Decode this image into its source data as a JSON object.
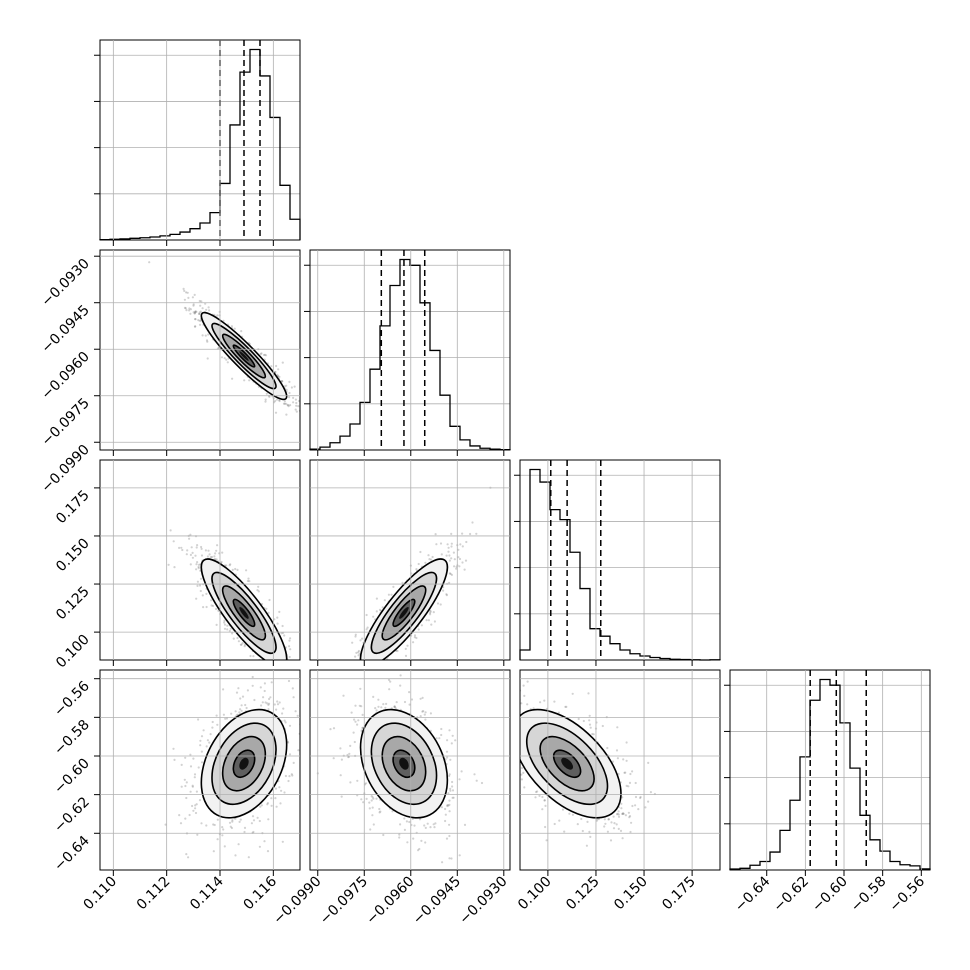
{
  "chart_data": {
    "type": "scatter",
    "kind": "corner-plot",
    "ndim": 4,
    "grid": true,
    "colors": {
      "line": "#000000",
      "grid": "#b0b0b0",
      "points": "#7f7f7f"
    },
    "params": [
      {
        "range": [
          0.1095,
          0.117
        ],
        "ticks": [
          0.11,
          0.112,
          0.114,
          0.116
        ],
        "tick_labels": [
          "0.110",
          "0.112",
          "0.114",
          "0.116"
        ],
        "quantiles": [
          0.114,
          0.1149,
          0.1155
        ],
        "median": 0.1149,
        "sigma": 0.0008
      },
      {
        "range": [
          -0.09925,
          -0.0928
        ],
        "ticks": [
          -0.099,
          -0.0975,
          -0.096,
          -0.0945,
          -0.093
        ],
        "tick_labels": [
          "−0.0990",
          "−0.0975",
          "−0.0960",
          "−0.0945",
          "−0.0930"
        ],
        "quantiles": [
          -0.09695,
          -0.09622,
          -0.09555
        ],
        "median": -0.09622,
        "sigma": 0.0007
      },
      {
        "range": [
          0.0855,
          0.1895
        ],
        "ticks": [
          0.1,
          0.125,
          0.15,
          0.175
        ],
        "tick_labels": [
          "0.100",
          "0.125",
          "0.150",
          "0.175"
        ],
        "quantiles": [
          0.1015,
          0.11,
          0.1275
        ],
        "median": 0.11,
        "sigma": 0.014
      },
      {
        "range": [
          -0.659,
          -0.5555
        ],
        "ticks": [
          -0.64,
          -0.62,
          -0.6,
          -0.58,
          -0.56
        ],
        "tick_labels": [
          "−0.64",
          "−0.62",
          "−0.60",
          "−0.58",
          "−0.56"
        ],
        "quantiles": [
          -0.6175,
          -0.604,
          -0.5885
        ],
        "median": -0.604,
        "sigma": 0.014
      }
    ],
    "histograms": [
      {
        "param": 0,
        "bins": [
          0.1095,
          0.117
        ],
        "counts": [
          2,
          4,
          6,
          9,
          12,
          16,
          22,
          30,
          42,
          60,
          90,
          145,
          300,
          610,
          890,
          1010,
          870,
          650,
          290,
          110
        ]
      },
      {
        "param": 1,
        "bins": [
          -0.09925,
          -0.0928
        ],
        "counts": [
          3,
          10,
          25,
          48,
          90,
          165,
          280,
          430,
          570,
          660,
          640,
          510,
          345,
          190,
          82,
          35,
          14,
          6,
          3,
          1
        ]
      },
      {
        "param": 2,
        "bins": [
          0.0855,
          0.1895
        ],
        "counts": [
          40,
          760,
          710,
          600,
          560,
          430,
          285,
          125,
          95,
          65,
          40,
          25,
          16,
          10,
          6,
          3,
          2,
          1,
          0,
          1
        ]
      },
      {
        "param": 3,
        "bins": [
          -0.659,
          -0.5555
        ],
        "counts": [
          5,
          9,
          25,
          45,
          95,
          210,
          370,
          600,
          900,
          1010,
          980,
          780,
          540,
          290,
          160,
          100,
          45,
          28,
          22,
          6
        ]
      }
    ],
    "pairs": [
      {
        "x": 0,
        "y": 1,
        "correlation": -0.93
      },
      {
        "x": 0,
        "y": 2,
        "correlation": -0.85
      },
      {
        "x": 1,
        "y": 2,
        "correlation": 0.85
      },
      {
        "x": 0,
        "y": 3,
        "correlation": 0.35
      },
      {
        "x": 1,
        "y": 3,
        "correlation": -0.3
      },
      {
        "x": 2,
        "y": 3,
        "correlation": -0.55
      }
    ],
    "contour_levels_sigma": [
      0.5,
      1.0,
      1.5,
      2.0
    ]
  }
}
